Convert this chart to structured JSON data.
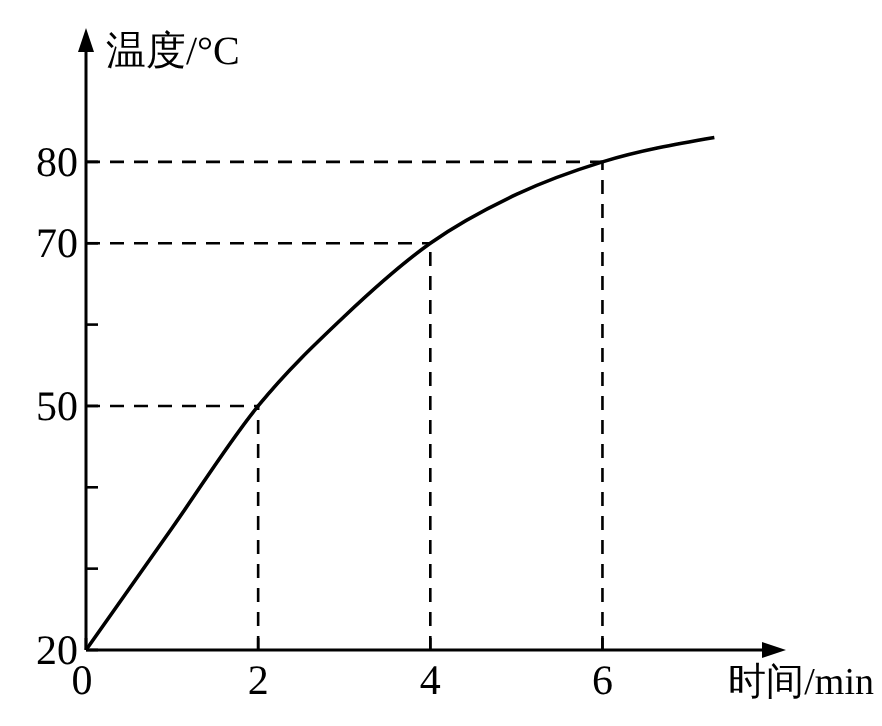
{
  "chart_data": {
    "type": "line",
    "xlabel": "时间/min",
    "ylabel": "温度/°C",
    "x": [
      0,
      1,
      2,
      3,
      4,
      5,
      6,
      7.3
    ],
    "series": [
      {
        "color": "#000000",
        "values": [
          20,
          35,
          50,
          61,
          70,
          76,
          80,
          83
        ]
      }
    ],
    "xlim": [
      0,
      7.9
    ],
    "ylim": [
      20,
      94
    ],
    "xticks": [
      0,
      2,
      4,
      6
    ],
    "yticks": [
      20,
      {
        "value": 30,
        "label": null
      },
      {
        "value": 40,
        "label": null
      },
      50,
      {
        "value": 60,
        "label": null
      },
      70,
      80
    ],
    "ref_lines": [
      {
        "axis": "y",
        "value": 50,
        "line_style": "dashed"
      },
      {
        "axis": "y",
        "value": 70,
        "line_style": "dashed"
      },
      {
        "axis": "y",
        "value": 80,
        "line_style": "dashed"
      },
      {
        "axis": "x",
        "value": 2,
        "line_style": "dashed"
      },
      {
        "axis": "x",
        "value": 4,
        "line_style": "dashed"
      },
      {
        "axis": "x",
        "value": 6,
        "line_style": "dashed"
      }
    ],
    "grid": false,
    "marker": "none",
    "line_style": "solid"
  }
}
